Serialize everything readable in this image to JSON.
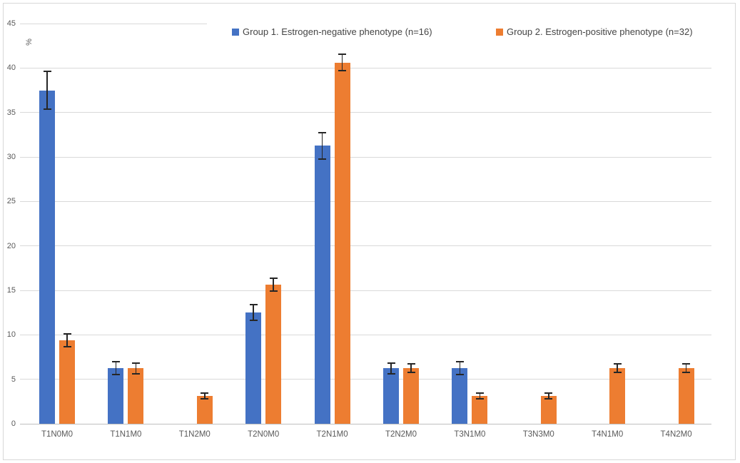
{
  "chart_data": {
    "type": "bar",
    "title": "",
    "xlabel": "",
    "ylabel": "%",
    "ylim": [
      0,
      45
    ],
    "ytick_step": 5,
    "grid": true,
    "legend_position": "top",
    "error_bars": true,
    "y_axis_tick_labels": [
      "0",
      "5",
      "10",
      "15",
      "20",
      "25",
      "30",
      "35",
      "40",
      "45"
    ],
    "categories": [
      "T1N0M0",
      "T1N1M0",
      "T1N2M0",
      "T2N0M0",
      "T2N1M0",
      "T2N2M0",
      "T3N1M0",
      "T3N3M0",
      "T4N1M0",
      "T4N2M0"
    ],
    "series": [
      {
        "name": "Group 1. Estrogen-negative phenotype (n=16)",
        "short": "group1",
        "color": "#4472C4",
        "values": [
          37.5,
          6.25,
          0,
          12.5,
          31.25,
          6.25,
          6.25,
          0,
          0,
          0
        ],
        "errors": [
          2.1,
          0.7,
          0,
          0.9,
          1.5,
          0.6,
          0.7,
          0,
          0,
          0
        ]
      },
      {
        "name": "Group 2. Estrogen-positive phenotype (n=32)",
        "short": "group2",
        "color": "#ED7D31",
        "values": [
          9.375,
          6.25,
          3.125,
          15.625,
          40.625,
          6.25,
          3.125,
          3.125,
          6.25,
          6.25
        ],
        "errors": [
          0.7,
          0.6,
          0.3,
          0.7,
          0.9,
          0.5,
          0.3,
          0.3,
          0.5,
          0.5
        ]
      }
    ]
  },
  "colors": {
    "background": "#FFFFFF",
    "border": "#D8D8D8",
    "gridline": "#D9D9D9",
    "axis_line": "#BFBFBF",
    "error_bar": "#262626",
    "tick_text": "#595959",
    "legend_text": "#454545"
  }
}
